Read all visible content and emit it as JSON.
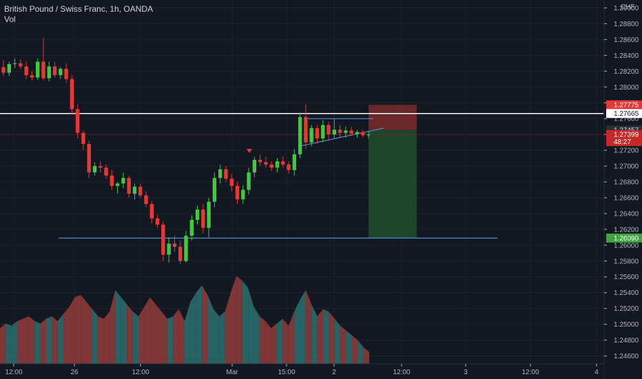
{
  "header": {
    "title": "British Pound / Swiss Franc, 1h, OANDA",
    "subtitle": "Vol"
  },
  "colors": {
    "background": "#131722",
    "grid": "#1e222d",
    "up": "#26a69a",
    "up_body": "#3fc93f",
    "down": "#c62828",
    "down_body": "#e53935",
    "vol_up": "#2a6b6b",
    "vol_down": "#8b3a3a",
    "resistance": "#ffffff",
    "support": "#4a90d9",
    "stop_zone": "#7a2b2b",
    "target_zone": "#1e4d2b"
  },
  "chart_data": {
    "type": "candlestick",
    "currency": "CHF",
    "ylim": [
      1.245,
      1.291
    ],
    "y_ticks": [
      "1.29000",
      "1.28800",
      "1.28600",
      "1.28400",
      "1.28200",
      "1.28000",
      "1.27800",
      "1.27600",
      "1.27400",
      "1.27200",
      "1.27000",
      "1.26800",
      "1.26600",
      "1.26400",
      "1.26200",
      "1.26000",
      "1.25800",
      "1.25600",
      "1.25400",
      "1.25200",
      "1.25000",
      "1.24800",
      "1.24600"
    ],
    "x_ticks": [
      "12:00",
      "26",
      "12:00",
      "Mar",
      "15:00",
      "2",
      "12:00",
      "3",
      "12:00",
      "4"
    ],
    "price_labels": [
      {
        "text": "1.27775",
        "value": 1.27775,
        "style": "stop"
      },
      {
        "text": "1.27665",
        "value": 1.27665,
        "style": "resistance"
      },
      {
        "text": "1.27457",
        "value": 1.27457,
        "style": "neutral"
      },
      {
        "text": "1.27399",
        "value": 1.27399,
        "style": "last"
      },
      {
        "text": "48:27",
        "value": 1.2731,
        "style": "countdown"
      },
      {
        "text": "1.26090",
        "value": 1.2609,
        "style": "target"
      }
    ],
    "resistance_level": 1.27665,
    "support_level": 1.2609,
    "position": {
      "stop": 1.27775,
      "entry": 1.27457,
      "target": 1.2609
    },
    "candles": [
      [
        1.2825,
        1.2834,
        1.2814,
        1.2818
      ],
      [
        1.2818,
        1.2832,
        1.2814,
        1.2829
      ],
      [
        1.2829,
        1.2836,
        1.2824,
        1.283
      ],
      [
        1.283,
        1.2835,
        1.2823,
        1.2826
      ],
      [
        1.2826,
        1.2832,
        1.281,
        1.2815
      ],
      [
        1.2815,
        1.282,
        1.2808,
        1.2812
      ],
      [
        1.2812,
        1.2836,
        1.2809,
        1.2832
      ],
      [
        1.2832,
        1.2862,
        1.2808,
        1.2811
      ],
      [
        1.2811,
        1.2832,
        1.2807,
        1.2826
      ],
      [
        1.2826,
        1.2832,
        1.2812,
        1.2815
      ],
      [
        1.2815,
        1.2825,
        1.281,
        1.2823
      ],
      [
        1.2823,
        1.283,
        1.2805,
        1.281
      ],
      [
        1.281,
        1.2815,
        1.2765,
        1.2772
      ],
      [
        1.2772,
        1.2778,
        1.2735,
        1.2742
      ],
      [
        1.2742,
        1.2745,
        1.272,
        1.2728
      ],
      [
        1.2728,
        1.2732,
        1.2685,
        1.2692
      ],
      [
        1.2692,
        1.2705,
        1.2688,
        1.27
      ],
      [
        1.27,
        1.2706,
        1.2692,
        1.2698
      ],
      [
        1.2698,
        1.2702,
        1.2684,
        1.2688
      ],
      [
        1.2688,
        1.2695,
        1.267,
        1.2675
      ],
      [
        1.2675,
        1.268,
        1.2665,
        1.2678
      ],
      [
        1.2678,
        1.2692,
        1.2672,
        1.2685
      ],
      [
        1.2685,
        1.2688,
        1.266,
        1.2665
      ],
      [
        1.2665,
        1.2678,
        1.2658,
        1.2674
      ],
      [
        1.2674,
        1.2678,
        1.266,
        1.2663
      ],
      [
        1.2663,
        1.2668,
        1.2648,
        1.2652
      ],
      [
        1.2652,
        1.2656,
        1.2628,
        1.2634
      ],
      [
        1.2634,
        1.2638,
        1.2622,
        1.2626
      ],
      [
        1.2626,
        1.263,
        1.258,
        1.2588
      ],
      [
        1.2588,
        1.261,
        1.2578,
        1.2602
      ],
      [
        1.2602,
        1.2612,
        1.2592,
        1.2598
      ],
      [
        1.2598,
        1.2606,
        1.2576,
        1.258
      ],
      [
        1.258,
        1.2618,
        1.2578,
        1.2612
      ],
      [
        1.2612,
        1.2638,
        1.2606,
        1.2632
      ],
      [
        1.2632,
        1.265,
        1.2626,
        1.2645
      ],
      [
        1.2645,
        1.2652,
        1.2615,
        1.2622
      ],
      [
        1.2622,
        1.266,
        1.261,
        1.2655
      ],
      [
        1.2655,
        1.2692,
        1.2648,
        1.2685
      ],
      [
        1.2685,
        1.2702,
        1.2678,
        1.2696
      ],
      [
        1.2696,
        1.27,
        1.268,
        1.2684
      ],
      [
        1.2684,
        1.269,
        1.2668,
        1.2675
      ],
      [
        1.2675,
        1.268,
        1.2652,
        1.2658
      ],
      [
        1.2658,
        1.2676,
        1.2652,
        1.267
      ],
      [
        1.267,
        1.2698,
        1.2664,
        1.2692
      ],
      [
        1.2692,
        1.2712,
        1.2686,
        1.2708
      ],
      [
        1.2708,
        1.2715,
        1.27,
        1.2705
      ],
      [
        1.2705,
        1.2712,
        1.2698,
        1.2702
      ],
      [
        1.2702,
        1.2706,
        1.2694,
        1.2698
      ],
      [
        1.2698,
        1.271,
        1.2692,
        1.2706
      ],
      [
        1.2706,
        1.2712,
        1.2698,
        1.2702
      ],
      [
        1.2702,
        1.2706,
        1.269,
        1.2695
      ],
      [
        1.2695,
        1.2722,
        1.2688,
        1.2715
      ],
      [
        1.2715,
        1.2768,
        1.271,
        1.2762
      ],
      [
        1.2762,
        1.2778,
        1.2722,
        1.273
      ],
      [
        1.273,
        1.2752,
        1.2725,
        1.2748
      ],
      [
        1.2748,
        1.2752,
        1.2728,
        1.2735
      ],
      [
        1.2735,
        1.2758,
        1.273,
        1.2752
      ],
      [
        1.2752,
        1.2756,
        1.2732,
        1.274
      ],
      [
        1.274,
        1.276,
        1.2735,
        1.2746
      ],
      [
        1.2746,
        1.2752,
        1.2736,
        1.2742
      ],
      [
        1.2742,
        1.275,
        1.2736,
        1.2745
      ],
      [
        1.2745,
        1.275,
        1.2738,
        1.2741
      ],
      [
        1.2741,
        1.2746,
        1.2736,
        1.2743
      ],
      [
        1.2743,
        1.2746,
        1.2736,
        1.2739
      ],
      [
        1.2739,
        1.2744,
        1.2735,
        1.274
      ]
    ],
    "volume": [
      30,
      34,
      32,
      36,
      38,
      40,
      36,
      34,
      38,
      40,
      36,
      42,
      48,
      56,
      58,
      52,
      46,
      40,
      38,
      44,
      62,
      56,
      50,
      44,
      40,
      48,
      56,
      50,
      44,
      38,
      40,
      46,
      36,
      52,
      60,
      66,
      58,
      46,
      40,
      44,
      60,
      74,
      70,
      64,
      48,
      40,
      36,
      30,
      34,
      38,
      32,
      44,
      54,
      62,
      50,
      40,
      46,
      44,
      38,
      32,
      28,
      24,
      20,
      14,
      10
    ],
    "vol_max": 80,
    "position_x_range": [
      0.55,
      0.69
    ]
  }
}
